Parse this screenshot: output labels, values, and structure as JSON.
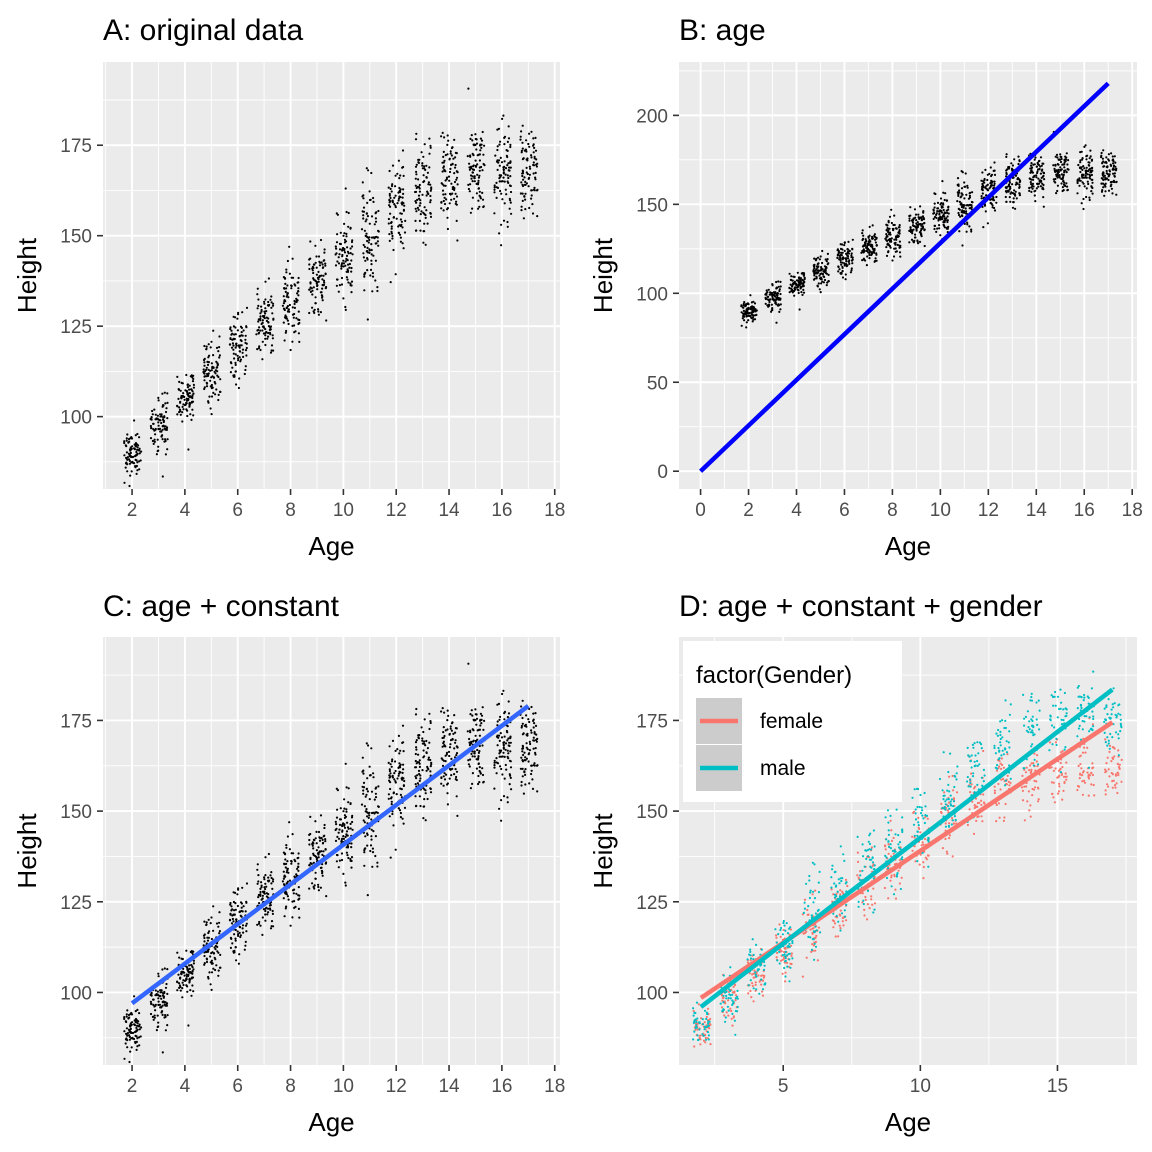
{
  "chart_data": [
    {
      "id": "A",
      "type": "scatter",
      "title": "A: original data",
      "xlabel": "Age",
      "ylabel": "Height",
      "xlim": [
        0.9,
        18.2
      ],
      "ylim": [
        80,
        198
      ],
      "xticks": [
        2,
        4,
        6,
        8,
        10,
        12,
        14,
        16,
        18
      ],
      "yticks": [
        100,
        125,
        150,
        175
      ],
      "grid": true,
      "points": {
        "ages": [
          2,
          3,
          4,
          5,
          6,
          7,
          8,
          9,
          10,
          11,
          12,
          13,
          14,
          15,
          16,
          17
        ],
        "mean_height": [
          90,
          98,
          106,
          112,
          120,
          126,
          132,
          138,
          144,
          150,
          157,
          162,
          166,
          168,
          168,
          168
        ],
        "spread": [
          5,
          6,
          6,
          7,
          8,
          8,
          9,
          9,
          10,
          10,
          11,
          11,
          11,
          11,
          11,
          11
        ],
        "per_age": 90,
        "color": "#000000"
      },
      "lines": []
    },
    {
      "id": "B",
      "type": "scatter",
      "title": "B: age",
      "xlabel": "Age",
      "ylabel": "Height",
      "xlim": [
        -0.9,
        18.2
      ],
      "ylim": [
        -10,
        230
      ],
      "xticks": [
        0,
        2,
        4,
        6,
        8,
        10,
        12,
        14,
        16,
        18
      ],
      "yticks": [
        0,
        50,
        100,
        150,
        200
      ],
      "grid": true,
      "points": {
        "ages": [
          2,
          3,
          4,
          5,
          6,
          7,
          8,
          9,
          10,
          11,
          12,
          13,
          14,
          15,
          16,
          17
        ],
        "mean_height": [
          90,
          98,
          106,
          112,
          120,
          126,
          132,
          138,
          144,
          150,
          157,
          162,
          166,
          168,
          168,
          168
        ],
        "spread": [
          5,
          6,
          6,
          7,
          8,
          8,
          9,
          9,
          10,
          10,
          11,
          11,
          11,
          11,
          11,
          11
        ],
        "per_age": 90,
        "color": "#000000"
      },
      "lines": [
        {
          "x": [
            0,
            17
          ],
          "y": [
            0,
            218
          ],
          "color": "#0000ff"
        }
      ]
    },
    {
      "id": "C",
      "type": "scatter",
      "title": "C: age + constant",
      "xlabel": "Age",
      "ylabel": "Height",
      "xlim": [
        0.9,
        18.2
      ],
      "ylim": [
        80,
        198
      ],
      "xticks": [
        2,
        4,
        6,
        8,
        10,
        12,
        14,
        16,
        18
      ],
      "yticks": [
        100,
        125,
        150,
        175
      ],
      "grid": true,
      "points": {
        "ages": [
          2,
          3,
          4,
          5,
          6,
          7,
          8,
          9,
          10,
          11,
          12,
          13,
          14,
          15,
          16,
          17
        ],
        "mean_height": [
          90,
          98,
          106,
          112,
          120,
          126,
          132,
          138,
          144,
          150,
          157,
          162,
          166,
          168,
          168,
          168
        ],
        "spread": [
          5,
          6,
          6,
          7,
          8,
          8,
          9,
          9,
          10,
          10,
          11,
          11,
          11,
          11,
          11,
          11
        ],
        "per_age": 90,
        "color": "#000000"
      },
      "lines": [
        {
          "x": [
            2,
            17
          ],
          "y": [
            97,
            179
          ],
          "color": "#3366ff"
        }
      ]
    },
    {
      "id": "D",
      "type": "scatter",
      "title": "D: age + constant + gender",
      "xlabel": "Age",
      "ylabel": "Height",
      "xlim": [
        1.2,
        17.9
      ],
      "ylim": [
        80,
        198
      ],
      "xticks": [
        5,
        10,
        15
      ],
      "yticks": [
        100,
        125,
        150,
        175
      ],
      "grid": true,
      "legend": {
        "title": "factor(Gender)",
        "entries": [
          {
            "label": "female",
            "color": "#f8766d"
          },
          {
            "label": "male",
            "color": "#00bfc4"
          }
        ],
        "position": "top-left"
      },
      "groups": [
        {
          "name": "female",
          "color": "#f8766d",
          "ages": [
            2,
            3,
            4,
            5,
            6,
            7,
            8,
            9,
            10,
            11,
            12,
            13,
            14,
            15,
            16,
            17
          ],
          "mean_height": [
            90,
            98,
            105,
            111,
            118,
            124,
            130,
            136,
            142,
            148,
            153,
            157,
            159,
            160,
            161,
            161
          ],
          "spread": [
            5,
            5,
            6,
            6,
            7,
            7,
            8,
            8,
            8,
            8,
            8,
            8,
            8,
            8,
            8,
            8
          ],
          "per_age": 45
        },
        {
          "name": "male",
          "color": "#00bfc4",
          "ages": [
            2,
            3,
            4,
            5,
            6,
            7,
            8,
            9,
            10,
            11,
            12,
            13,
            14,
            15,
            16,
            17
          ],
          "mean_height": [
            90,
            98,
            107,
            113,
            122,
            128,
            134,
            140,
            146,
            153,
            161,
            167,
            172,
            175,
            176,
            176
          ],
          "spread": [
            5,
            6,
            6,
            7,
            8,
            8,
            9,
            9,
            9,
            9,
            9,
            9,
            9,
            9,
            9,
            9
          ],
          "per_age": 45
        }
      ],
      "lines": [
        {
          "name": "female",
          "x": [
            2,
            17
          ],
          "y": [
            98.5,
            174.5
          ],
          "color": "#f8766d"
        },
        {
          "name": "male",
          "x": [
            2,
            17
          ],
          "y": [
            96,
            183.5
          ],
          "color": "#00bfc4"
        }
      ]
    }
  ]
}
